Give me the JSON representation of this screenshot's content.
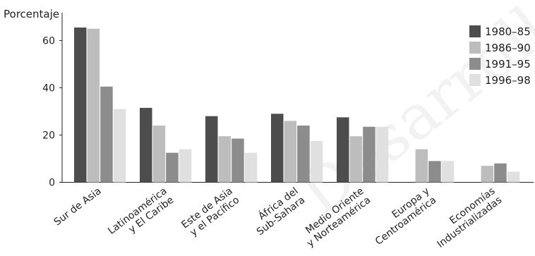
{
  "chart_data": {
    "type": "bar",
    "ylabel": "Porcentaje",
    "ylim": [
      0,
      67
    ],
    "yticks": [
      0,
      20,
      40,
      60
    ],
    "grid": false,
    "legend_position": "top-right",
    "categories": [
      [
        "Sur de Asia"
      ],
      [
        "Latinoamérica",
        "y El Caribe"
      ],
      [
        "Este de Asia",
        "y el Pacífico"
      ],
      [
        "África del",
        "Sub-Sahara"
      ],
      [
        "Medio Oriente",
        "y Norteamérica"
      ],
      [
        "Europa y",
        "Centroamérica"
      ],
      [
        "Economías",
        "Industrializadas"
      ]
    ],
    "series": [
      {
        "name": "1980–85",
        "color": "#4d4d4d",
        "values": [
          65.5,
          31.5,
          28,
          29,
          27.5,
          null,
          null
        ]
      },
      {
        "name": "1986–90",
        "color": "#bdbdbd",
        "values": [
          65,
          24,
          19.5,
          26,
          19.5,
          14,
          7
        ]
      },
      {
        "name": "1991–95",
        "color": "#8c8c8c",
        "values": [
          40.5,
          12.5,
          18.5,
          24,
          23.5,
          9,
          8
        ]
      },
      {
        "name": "1996–98",
        "color": "#e0e0e0",
        "values": [
          31,
          14,
          12.5,
          17.5,
          23.5,
          9,
          4.5
        ]
      }
    ]
  },
  "watermark": "Desarrollo"
}
